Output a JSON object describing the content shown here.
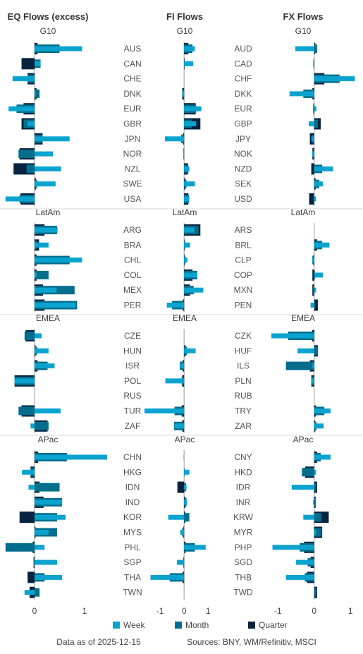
{
  "footer": {
    "date_note": "Data as of 2025-12-15",
    "sources": "Sources:  BNY, WM/Refinitiv, MSCI"
  },
  "legend": [
    {
      "name": "Week",
      "color": "#0aa3cf"
    },
    {
      "name": "Month",
      "color": "#036e8c"
    },
    {
      "name": "Quarter",
      "color": "#07233f"
    }
  ],
  "chart_data": [
    {
      "type": "bar",
      "title": "EQ Flows (excess)",
      "xticks": [
        0,
        1
      ],
      "xlim": [
        -0.62,
        1.45
      ],
      "groups": [
        "G10",
        "LatAm",
        "EMEA",
        "APac"
      ],
      "categories": {
        "G10": [
          "AUS",
          "CAN",
          "CHE",
          "DNK",
          "EUR",
          "GBR",
          "JPN",
          "NOR",
          "NZL",
          "SWE",
          "USA"
        ],
        "LatAm": [
          "ARG",
          "BRA",
          "CHL",
          "COL",
          "MEX",
          "PER"
        ],
        "EMEA": [
          "CZE",
          "HUN",
          "ISR",
          "POL",
          "RUS",
          "TUR",
          "ZAF"
        ],
        "APac": [
          "CHN",
          "HKG",
          "IDN",
          "IND",
          "KOR",
          "MYS",
          "PHL",
          "SGP",
          "THA",
          "TWN"
        ]
      },
      "series": [
        {
          "name": "Week",
          "values": {
            "G10": [
              0.95,
              0.12,
              -0.44,
              0.02,
              -0.52,
              -0.14,
              0.7,
              0.37,
              0.53,
              0.42,
              -0.58
            ],
            "LatAm": [
              0.46,
              0.28,
              0.95,
              0.04,
              0.44,
              0.82
            ],
            "EMEA": [
              0.14,
              0.28,
              0.4,
              -0.4,
              0,
              0.52,
              -0.08
            ],
            "APac": [
              1.45,
              -0.25,
              -0.12,
              0.55,
              0.62,
              0.28,
              0.2,
              0.45,
              0.55,
              -0.2
            ]
          }
        },
        {
          "name": "Month",
          "values": {
            "G10": [
              0.5,
              0.12,
              -0.14,
              0.1,
              -0.36,
              -0.22,
              0.16,
              -0.32,
              -0.16,
              0.05,
              -0.3
            ],
            "LatAm": [
              0.45,
              0.05,
              0.7,
              0.28,
              0.8,
              0.85
            ],
            "EMEA": [
              -0.2,
              0.05,
              0.26,
              -0.4,
              0,
              -0.32,
              0.28
            ],
            "APac": [
              0.65,
              -0.08,
              0.5,
              0.55,
              0.45,
              0.45,
              -0.58,
              -0.02,
              0.2,
              0.1
            ]
          }
        },
        {
          "name": "Quarter",
          "values": {
            "G10": [
              0.06,
              -0.26,
              -0.14,
              0.04,
              -0.22,
              -0.26,
              0.16,
              -0.3,
              -0.42,
              0.03,
              -0.28
            ],
            "LatAm": [
              0.2,
              0.09,
              0.04,
              0.04,
              0.17,
              0.2
            ],
            "EMEA": [
              -0.18,
              0.02,
              0.06,
              -0.4,
              0,
              -0.26,
              0.26
            ],
            "APac": [
              0.07,
              -0.08,
              0.1,
              0.18,
              -0.3,
              0.02,
              -0.04,
              -0.02,
              -0.14,
              -0.1
            ]
          }
        }
      ]
    },
    {
      "type": "bar",
      "title": "FI Flows",
      "xticks": [
        -1,
        0,
        1
      ],
      "xlim": [
        -1.65,
        1.2
      ],
      "groups": [
        "G10",
        "LatAm",
        "EMEA",
        "APac"
      ],
      "categories": {
        "G10": [
          "AUS",
          "CAN",
          "CHE",
          "DNK",
          "EUR",
          "GBR",
          "JPN",
          "NOR",
          "NZL",
          "SWE",
          "USA"
        ],
        "LatAm": [
          "ARG",
          "BRA",
          "CHL",
          "COL",
          "MEX",
          "PER"
        ],
        "EMEA": [
          "CZE",
          "HUN",
          "ISR",
          "POL",
          "RUS",
          "TUR",
          "ZAF"
        ],
        "APac": [
          "CHN",
          "HKG",
          "IDN",
          "IND",
          "KOR",
          "MYS",
          "PHL",
          "SGP",
          "THA",
          "TWN"
        ]
      },
      "series": [
        {
          "name": "Week",
          "values": {
            "G10": [
              0.45,
              0.38,
              0,
              -0.08,
              0.72,
              0.5,
              -0.8,
              -0.03,
              0.22,
              0.45,
              0.22
            ],
            "LatAm": [
              0.42,
              0.25,
              0.14,
              0.55,
              0.8,
              -0.72
            ],
            "EMEA": [
              0,
              0.48,
              -0.16,
              -0.78,
              0,
              -1.65,
              -0.4
            ],
            "APac": [
              -0.02,
              0.22,
              0.1,
              0.12,
              -0.66,
              -0.16,
              0.9,
              -0.3,
              -1.4,
              0
            ]
          }
        },
        {
          "name": "Month",
          "values": {
            "G10": [
              0.35,
              0.02,
              0,
              -0.08,
              0.5,
              0.32,
              -0.12,
              -0.03,
              0.18,
              0.1,
              0.2
            ],
            "LatAm": [
              0.6,
              0.04,
              0.05,
              0.55,
              0.4,
              -0.5
            ],
            "EMEA": [
              0,
              0.12,
              -0.18,
              -0.1,
              0,
              -0.4,
              -0.42
            ],
            "APac": [
              0,
              0.02,
              0.08,
              0.1,
              0.22,
              -0.08,
              0.45,
              -0.04,
              -0.6,
              0
            ]
          }
        },
        {
          "name": "Quarter",
          "values": {
            "G10": [
              0.18,
              0.02,
              0,
              -0.08,
              0.48,
              0.68,
              -0.04,
              -0.02,
              0.16,
              0.05,
              0.18
            ],
            "LatAm": [
              0.68,
              0.02,
              0.02,
              0.35,
              0.25,
              -0.05
            ],
            "EMEA": [
              0,
              0.06,
              -0.06,
              -0.08,
              0,
              -0.1,
              -0.08
            ],
            "APac": [
              0,
              0,
              -0.28,
              0.05,
              0.05,
              -0.03,
              0.06,
              -0.02,
              -0.06,
              0
            ]
          }
        }
      ]
    },
    {
      "type": "bar",
      "title": "FX Flows",
      "xticks": [
        -1,
        0,
        1
      ],
      "xlim": [
        -1.18,
        1.15
      ],
      "groups": [
        "G10",
        "LatAm",
        "EMEA",
        "APac"
      ],
      "categories": {
        "G10": [
          "AUD",
          "CAD",
          "CHF",
          "DKK",
          "EUR",
          "GBP",
          "JPY",
          "NOK",
          "NZD",
          "SEK",
          "USD"
        ],
        "LatAm": [
          "ARS",
          "BRL",
          "CLP",
          "COP",
          "MXN",
          "PEN"
        ],
        "EMEA": [
          "CZK",
          "HUF",
          "ILS",
          "PLN",
          "RUB",
          "TRY",
          "ZAR"
        ],
        "APac": [
          "CNY",
          "HKD",
          "IDR",
          "INR",
          "KRW",
          "MYR",
          "PHP",
          "SGD",
          "THB",
          "TWD"
        ]
      },
      "series": [
        {
          "name": "Week",
          "values": {
            "G10": [
              -0.52,
              -0.03,
              1.12,
              -0.68,
              0.06,
              -0.15,
              -0.08,
              -0.06,
              0.52,
              0.24,
              0.05
            ],
            "LatAm": [
              0,
              0.42,
              -0.06,
              0.24,
              0.05,
              -0.1
            ],
            "EMEA": [
              -1.18,
              -0.46,
              -0.05,
              -0.08,
              0,
              0.45,
              0.26
            ],
            "APac": [
              0.45,
              0.05,
              -0.62,
              -0.03,
              -0.3,
              0.05,
              -1.15,
              -0.5,
              -0.78,
              0
            ]
          }
        },
        {
          "name": "Month",
          "values": {
            "G10": [
              0.08,
              -0.02,
              0.7,
              -0.3,
              -0.03,
              0.1,
              -0.06,
              -0.04,
              0.22,
              0.14,
              -0.02
            ],
            "LatAm": [
              0,
              0.22,
              -0.05,
              0.02,
              -0.03,
              0.02
            ],
            "EMEA": [
              -0.72,
              0.1,
              -0.78,
              -0.08,
              0,
              0.28,
              0.06
            ],
            "APac": [
              0.18,
              -0.34,
              0.04,
              0.04,
              0.2,
              0.2,
              -0.4,
              -0.18,
              -0.26,
              0.05
            ]
          }
        },
        {
          "name": "Quarter",
          "values": {
            "G10": [
              0.03,
              -0.01,
              0.28,
              -0.05,
              -0.02,
              0.18,
              -0.12,
              -0.05,
              -0.08,
              0.04,
              -0.14
            ],
            "LatAm": [
              0,
              0.08,
              -0.02,
              -0.05,
              -0.05,
              0.1
            ],
            "EMEA": [
              -0.06,
              0.1,
              -0.12,
              -0.08,
              0,
              0.05,
              0.03
            ],
            "APac": [
              0.08,
              -0.25,
              0.08,
              0.04,
              0.4,
              0.22,
              -0.28,
              -0.1,
              -0.2,
              0.08
            ]
          }
        }
      ]
    }
  ]
}
